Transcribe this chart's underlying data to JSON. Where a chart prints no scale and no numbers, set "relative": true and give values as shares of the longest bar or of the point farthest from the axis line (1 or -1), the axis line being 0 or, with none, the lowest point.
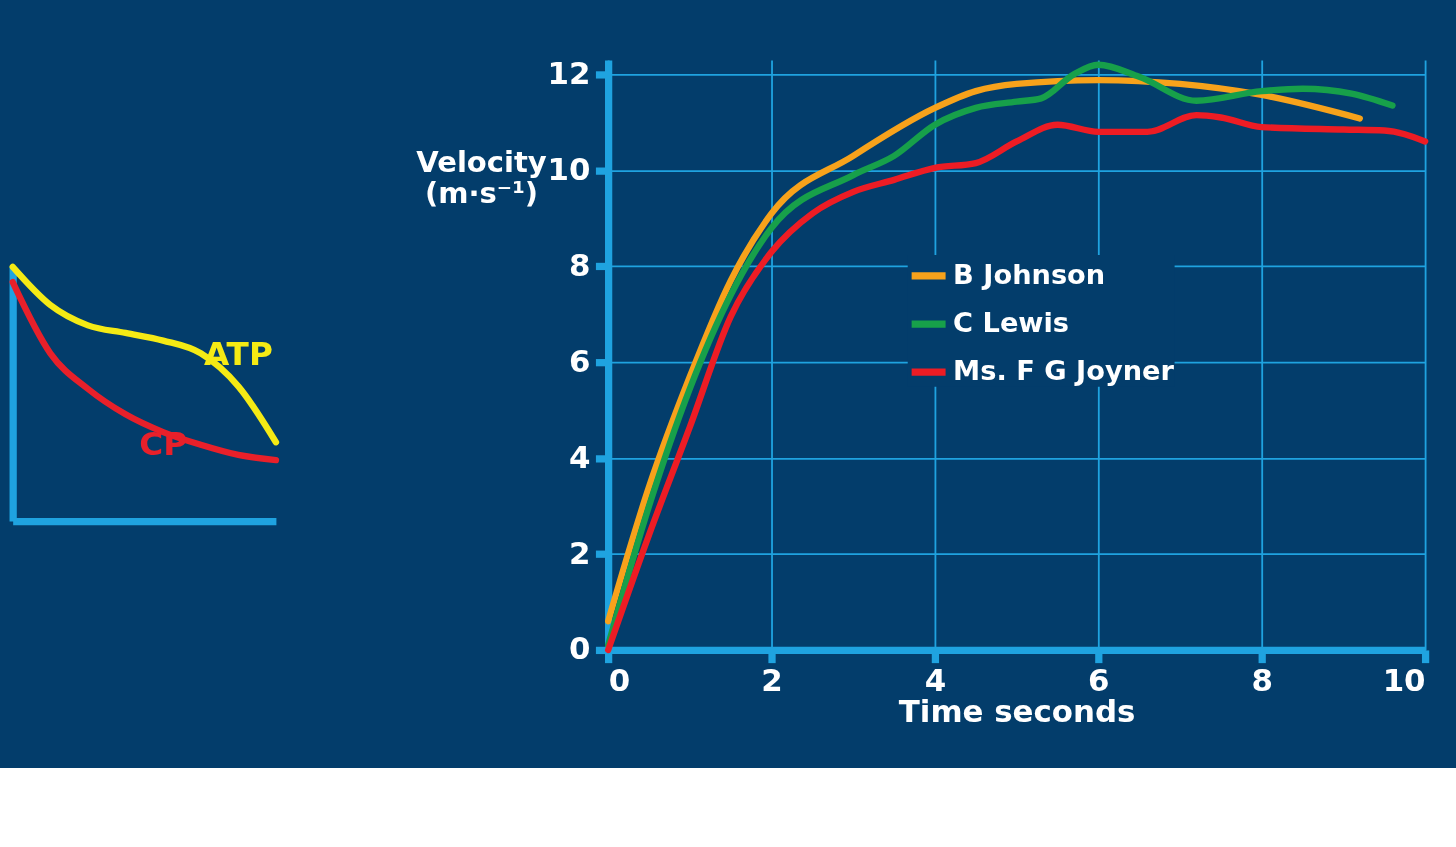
{
  "chart_data": [
    {
      "type": "line",
      "relative": true,
      "categories": [
        null,
        null,
        null,
        null,
        null,
        null,
        null,
        null
      ],
      "legend": false,
      "tick_labels": false,
      "grid": false,
      "series": [
        {
          "name": "ATP",
          "color": "#f5ea14",
          "values": [
            1.0,
            0.85,
            0.77,
            0.74,
            0.71,
            0.66,
            0.53,
            0.31
          ]
        },
        {
          "name": "CP",
          "color": "#e8202a",
          "values": [
            0.94,
            0.66,
            0.52,
            0.42,
            0.35,
            0.3,
            0.26,
            0.24
          ]
        }
      ]
    },
    {
      "type": "line",
      "xlabel": "Time seconds",
      "ylabel": "Velocity (m·s⁻¹)",
      "xlim": [
        0,
        10
      ],
      "ylim": [
        0,
        12.3
      ],
      "xticks": [
        0,
        2,
        4,
        6,
        8,
        10
      ],
      "yticks": [
        0,
        2,
        4,
        6,
        8,
        10,
        12
      ],
      "grid": true,
      "legend": "right",
      "series": [
        {
          "name": "B Johnson",
          "color": "#f7a21b",
          "x": [
            0,
            0.5,
            1,
            1.5,
            2,
            3,
            4,
            4.5,
            5,
            6,
            7,
            8,
            9.2
          ],
          "values": [
            0.6,
            3.4,
            5.7,
            7.7,
            9.1,
            10.3,
            11.3,
            11.65,
            11.8,
            11.88,
            11.8,
            11.57,
            11.08
          ]
        },
        {
          "name": "C Lewis",
          "color": "#17a04a",
          "x": [
            0,
            0.5,
            1,
            1.5,
            2,
            3,
            3.5,
            4,
            4.5,
            5,
            5.3,
            5.7,
            6,
            6.5,
            7.2,
            8,
            8.5,
            9.1,
            9.6
          ],
          "values": [
            0.1,
            3.0,
            5.45,
            7.4,
            8.8,
            9.9,
            10.3,
            10.95,
            11.3,
            11.43,
            11.5,
            12.0,
            12.2,
            11.95,
            11.45,
            11.65,
            11.7,
            11.6,
            11.35
          ]
        },
        {
          "name": "Ms. F G Joyner",
          "color": "#ed1c24",
          "x": [
            0,
            0.5,
            1,
            1.5,
            2,
            2.5,
            3,
            3.5,
            4,
            4.5,
            5,
            5.5,
            6,
            6.6,
            7.2,
            7.5,
            8,
            9,
            9.5,
            10
          ],
          "values": [
            0,
            2.4,
            4.65,
            6.95,
            8.3,
            9.1,
            9.55,
            9.8,
            10.05,
            10.15,
            10.6,
            10.95,
            10.8,
            10.8,
            11.15,
            11.1,
            10.9,
            10.85,
            10.83,
            10.6
          ]
        }
      ]
    }
  ]
}
